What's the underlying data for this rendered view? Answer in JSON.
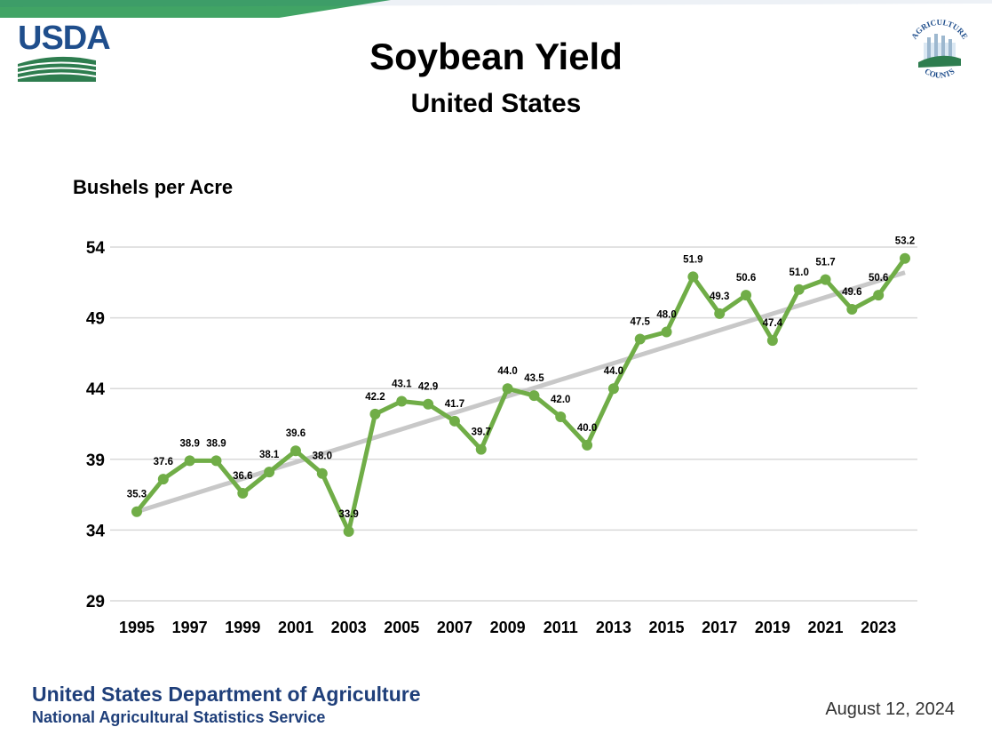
{
  "header": {
    "logo_text": "USDA",
    "title": "Soybean Yield",
    "subtitle": "United States",
    "badge_top_text": "AGRICULTURE",
    "badge_bottom_text": "COUNTS"
  },
  "colors": {
    "series": "#70ad47",
    "trend": "#c8c8c8",
    "brand_blue": "#1f4e8c",
    "brand_green": "#2e7d4f",
    "grid": "#d9d9d9"
  },
  "chart_data": {
    "type": "line",
    "title": "Soybean Yield",
    "subtitle": "United States",
    "ylabel": "Bushels per Acre",
    "xlabel": "",
    "ylim": [
      29,
      54
    ],
    "yticks": [
      29,
      34,
      39,
      44,
      49,
      54
    ],
    "x_tick_labels": [
      "1995",
      "1997",
      "1999",
      "2001",
      "2003",
      "2005",
      "2007",
      "2009",
      "2011",
      "2013",
      "2015",
      "2017",
      "2019",
      "2021",
      "2023"
    ],
    "x": [
      1995,
      1996,
      1997,
      1998,
      1999,
      2000,
      2001,
      2002,
      2003,
      2004,
      2005,
      2006,
      2007,
      2008,
      2009,
      2010,
      2011,
      2012,
      2013,
      2014,
      2015,
      2016,
      2017,
      2018,
      2019,
      2020,
      2021,
      2022,
      2023,
      2024
    ],
    "series": [
      {
        "name": "Yield",
        "values": [
          35.3,
          37.6,
          38.9,
          38.9,
          36.6,
          38.1,
          39.6,
          38.0,
          33.9,
          42.2,
          43.1,
          42.9,
          41.7,
          39.7,
          44.0,
          43.5,
          42.0,
          40.0,
          44.0,
          47.5,
          48.0,
          51.9,
          49.3,
          50.6,
          47.4,
          51.0,
          51.7,
          49.6,
          50.6,
          53.2
        ],
        "labels": [
          "35.3",
          "37.6",
          "38.9",
          "38.9",
          "36.6",
          "38.1",
          "39.6",
          "38.0",
          "33.9",
          "42.2",
          "43.1",
          "42.9",
          "41.7",
          "39.7",
          "44.0",
          "43.5",
          "42.0",
          "40.0",
          "44.0",
          "47.5",
          "48.0",
          "51.9",
          "49.3",
          "50.6",
          "47.4",
          "51.0",
          "51.7",
          "49.6",
          "50.6",
          "53.2"
        ]
      }
    ],
    "trendline": {
      "type": "linear",
      "from": [
        1995,
        35.3
      ],
      "to": [
        2024,
        52.2
      ]
    },
    "grid": true
  },
  "footer": {
    "department": "United States Department of Agriculture",
    "service": "National Agricultural Statistics Service",
    "date": "August 12, 2024"
  }
}
